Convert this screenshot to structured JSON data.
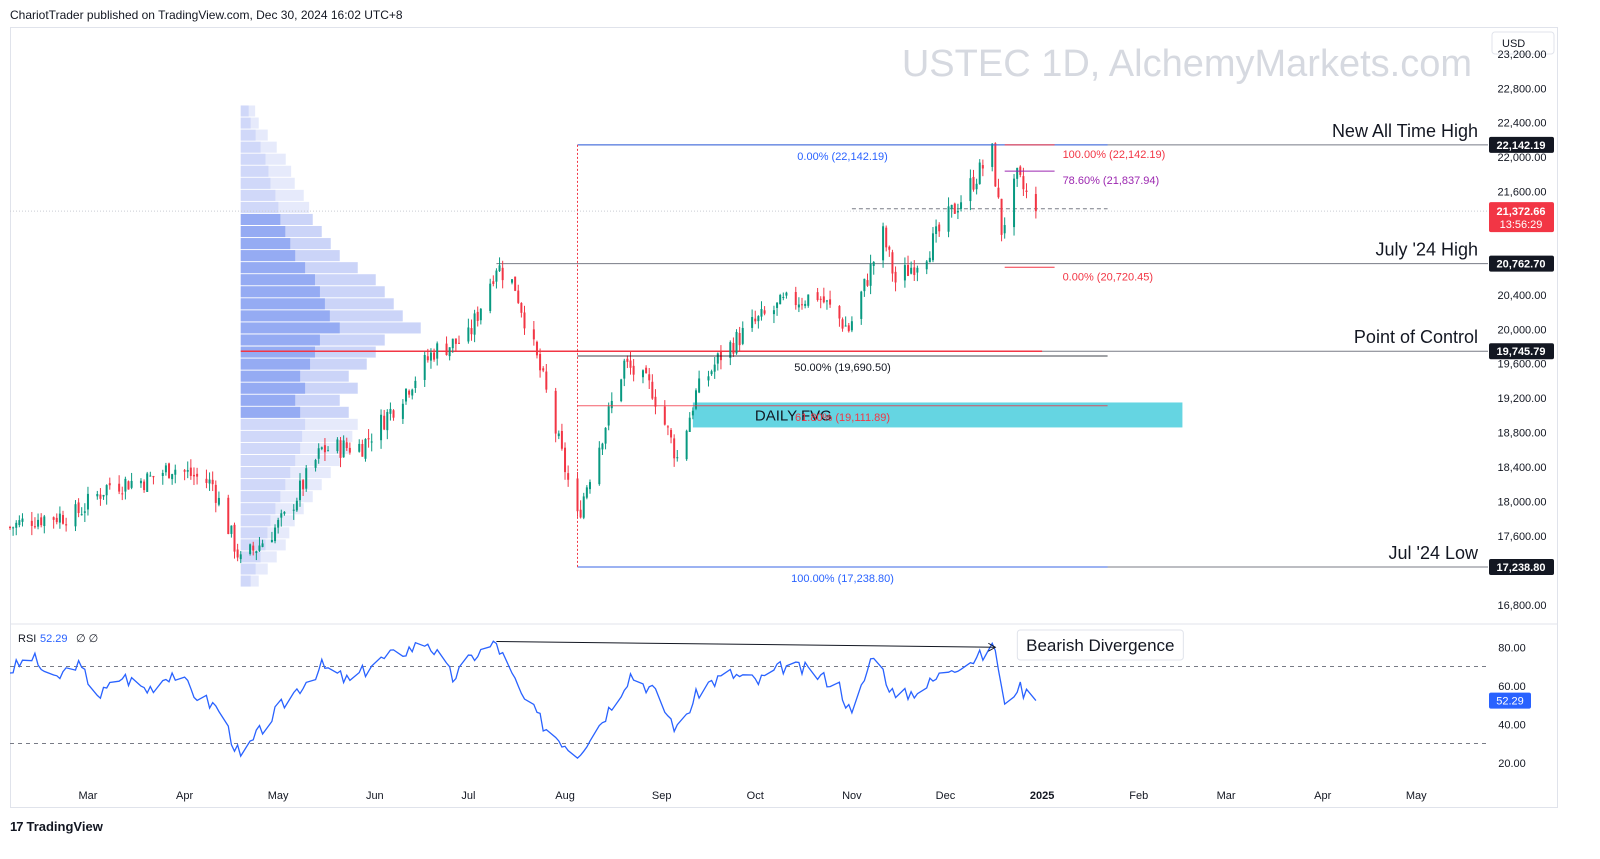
{
  "header": {
    "publish_line": "ChariotTrader published on TradingView.com, Dec 30, 2024 16:02 UTC+8"
  },
  "footer": {
    "logo_text": "TradingView",
    "logo_mark": "17"
  },
  "chart_data": {
    "type": "candlestick",
    "watermark": "USTEC 1D, AlchemyMarkets.com",
    "currency": "USD",
    "ylim": [
      16600,
      23500
    ],
    "y_ticks": [
      16800,
      17600,
      18000,
      18400,
      18800,
      19200,
      19600,
      20000,
      20400,
      21600,
      22000,
      22400,
      22800,
      23200
    ],
    "y_tick_labels": [
      "16,800.00",
      "17,600.00",
      "18,000.00",
      "18,400.00",
      "18,800.00",
      "19,200.00",
      "19,600.00",
      "20,000.00",
      "20,400.00",
      "21,600.00",
      "22,000.00",
      "22,400.00",
      "22,800.00",
      "23,200.00"
    ],
    "x_labels": [
      {
        "label": "Mar",
        "x": "2024-03-01"
      },
      {
        "label": "Apr",
        "x": "2024-04-01"
      },
      {
        "label": "May",
        "x": "2024-05-01"
      },
      {
        "label": "Jun",
        "x": "2024-06-01"
      },
      {
        "label": "Jul",
        "x": "2024-07-01"
      },
      {
        "label": "Aug",
        "x": "2024-08-01"
      },
      {
        "label": "Sep",
        "x": "2024-09-01"
      },
      {
        "label": "Oct",
        "x": "2024-10-01"
      },
      {
        "label": "Nov",
        "x": "2024-11-01"
      },
      {
        "label": "Dec",
        "x": "2024-12-01"
      },
      {
        "label": "2025",
        "x": "2025-01-01"
      },
      {
        "label": "Feb",
        "x": "2025-02-01"
      },
      {
        "label": "Mar",
        "x": "2025-03-01"
      },
      {
        "label": "Apr",
        "x": "2025-04-01"
      },
      {
        "label": "May",
        "x": "2025-05-01"
      }
    ],
    "x_range": [
      "2024-02-05",
      "2025-05-24"
    ],
    "price_path": [
      [
        "2024-02-05",
        17700
      ],
      [
        "2024-02-12",
        17800
      ],
      [
        "2024-02-26",
        17850
      ],
      [
        "2024-03-08",
        18200
      ],
      [
        "2024-03-20",
        18250
      ],
      [
        "2024-03-28",
        18400
      ],
      [
        "2024-04-10",
        18200
      ],
      [
        "2024-04-19",
        17300
      ],
      [
        "2024-04-25",
        17500
      ],
      [
        "2024-05-03",
        17800
      ],
      [
        "2024-05-15",
        18600
      ],
      [
        "2024-05-28",
        18650
      ],
      [
        "2024-06-06",
        19050
      ],
      [
        "2024-06-20",
        19750
      ],
      [
        "2024-07-01",
        19900
      ],
      [
        "2024-07-10",
        20750
      ],
      [
        "2024-07-16",
        20500
      ],
      [
        "2024-07-25",
        19400
      ],
      [
        "2024-08-05",
        17800
      ],
      [
        "2024-08-08",
        18200
      ],
      [
        "2024-08-20",
        19600
      ],
      [
        "2024-08-29",
        19300
      ],
      [
        "2024-09-06",
        18500
      ],
      [
        "2024-09-12",
        19250
      ],
      [
        "2024-09-20",
        19700
      ],
      [
        "2024-09-30",
        20050
      ],
      [
        "2024-10-10",
        20300
      ],
      [
        "2024-10-21",
        20400
      ],
      [
        "2024-10-31",
        20000
      ],
      [
        "2024-11-11",
        21100
      ],
      [
        "2024-11-15",
        20550
      ],
      [
        "2024-11-25",
        20900
      ],
      [
        "2024-12-02",
        21300
      ],
      [
        "2024-12-16",
        22050
      ],
      [
        "2024-12-19",
        21150
      ],
      [
        "2024-12-24",
        21750
      ],
      [
        "2024-12-30",
        21372.66
      ]
    ],
    "volume_profile": {
      "price_start": 17000,
      "bin_size": 140,
      "weights": [
        0.1,
        0.15,
        0.2,
        0.25,
        0.27,
        0.3,
        0.35,
        0.4,
        0.45,
        0.5,
        0.55,
        0.6,
        0.62,
        0.65,
        0.6,
        0.55,
        0.65,
        0.6,
        0.7,
        0.75,
        0.8,
        1.0,
        0.9,
        0.85,
        0.8,
        0.75,
        0.65,
        0.55,
        0.5,
        0.45,
        0.4,
        0.38,
        0.35,
        0.3,
        0.28,
        0.25,
        0.2,
        0.15,
        0.1,
        0.08
      ],
      "highlight_range": [
        19000,
        21300
      ]
    },
    "fib_left": {
      "x_start": "2024-08-05",
      "x_end": "2025-01-22",
      "levels": [
        {
          "price": 22142.19,
          "label": "0.00% (22,142.19)",
          "color": "#2962ff"
        },
        {
          "price": 19690.5,
          "label": "50.00% (19,690.50)",
          "color": "#131722"
        },
        {
          "price": 19111.89,
          "label": "61.80% (19,111.89)",
          "color": "#f23645"
        },
        {
          "price": 17238.8,
          "label": "100.00% (17,238.80)",
          "color": "#2962ff"
        }
      ]
    },
    "fib_right": {
      "x_start": "2024-12-20",
      "x_end": "2025-01-05",
      "levels": [
        {
          "price": 22142.19,
          "label": "100.00% (22,142.19)",
          "color": "#f23645"
        },
        {
          "price": 21837.94,
          "label": "78.60% (21,837.94)",
          "color": "#9c27b0"
        },
        {
          "price": 20720.45,
          "label": "0.00% (20,720.45)",
          "color": "#f23645"
        }
      ]
    },
    "horizontal_levels": [
      {
        "price": 22142.19,
        "label": "New All Time High",
        "price_label": "22,142.19",
        "from": "2024-08-05"
      },
      {
        "price": 20762.7,
        "label": "July '24 High",
        "price_label": "20,762.70",
        "from": "2024-07-10"
      },
      {
        "price": 19745.79,
        "label": "Point of Control",
        "price_label": "19,745.79",
        "from": "2024-08-05"
      },
      {
        "price": 17238.8,
        "label": "Jul '24 Low",
        "price_label": "17,238.80",
        "from": "2024-08-05"
      }
    ],
    "poc_red_line": {
      "price": 19745.79,
      "from": "2024-04-19",
      "to": "2025-01-01",
      "color": "#f23645"
    },
    "fvg_zone": {
      "label": "DAILY FVG",
      "top": 19150,
      "bottom": 18860,
      "from": "2024-09-11",
      "to": "2025-02-15",
      "color": "#5dd3e0"
    },
    "dashed_level": {
      "price": 21400,
      "from": "2024-11-01",
      "to": "2025-01-22"
    },
    "current_price": {
      "price": 21372.66,
      "label": "21,372.66",
      "countdown": "13:56:29",
      "color": "#f23645"
    },
    "rsi": {
      "label": "RSI",
      "value_label": "52.29",
      "extra": "∅ ∅",
      "ylim": [
        10,
        90
      ],
      "ticks": [
        20,
        40,
        60,
        80
      ],
      "tick_labels": [
        "20.00",
        "40.00",
        "60.00",
        "80.00"
      ],
      "bands": [
        70,
        30
      ],
      "last_value": 52.29,
      "path": [
        [
          "2024-02-05",
          68
        ],
        [
          "2024-02-12",
          75
        ],
        [
          "2024-02-19",
          62
        ],
        [
          "2024-02-26",
          72
        ],
        [
          "2024-03-05",
          55
        ],
        [
          "2024-03-12",
          65
        ],
        [
          "2024-03-20",
          58
        ],
        [
          "2024-03-28",
          67
        ],
        [
          "2024-04-05",
          55
        ],
        [
          "2024-04-12",
          48
        ],
        [
          "2024-04-19",
          22
        ],
        [
          "2024-04-26",
          38
        ],
        [
          "2024-05-05",
          55
        ],
        [
          "2024-05-15",
          70
        ],
        [
          "2024-05-24",
          62
        ],
        [
          "2024-06-01",
          72
        ],
        [
          "2024-06-10",
          78
        ],
        [
          "2024-06-18",
          83
        ],
        [
          "2024-06-26",
          64
        ],
        [
          "2024-07-03",
          76
        ],
        [
          "2024-07-10",
          82
        ],
        [
          "2024-07-18",
          55
        ],
        [
          "2024-07-26",
          38
        ],
        [
          "2024-08-05",
          25
        ],
        [
          "2024-08-12",
          40
        ],
        [
          "2024-08-22",
          66
        ],
        [
          "2024-08-29",
          58
        ],
        [
          "2024-09-06",
          37
        ],
        [
          "2024-09-14",
          60
        ],
        [
          "2024-09-23",
          66
        ],
        [
          "2024-10-02",
          62
        ],
        [
          "2024-10-10",
          70
        ],
        [
          "2024-10-18",
          68
        ],
        [
          "2024-10-28",
          60
        ],
        [
          "2024-11-01",
          44
        ],
        [
          "2024-11-08",
          78
        ],
        [
          "2024-11-15",
          53
        ],
        [
          "2024-11-25",
          60
        ],
        [
          "2024-12-03",
          70
        ],
        [
          "2024-12-12",
          75
        ],
        [
          "2024-12-17",
          80
        ],
        [
          "2024-12-20",
          48
        ],
        [
          "2024-12-24",
          60
        ],
        [
          "2024-12-30",
          52.29
        ]
      ],
      "divergence_line": {
        "from": [
          "2024-07-10",
          83
        ],
        "to": [
          "2024-12-17",
          80
        ]
      },
      "annotation": "Bearish Divergence"
    }
  }
}
